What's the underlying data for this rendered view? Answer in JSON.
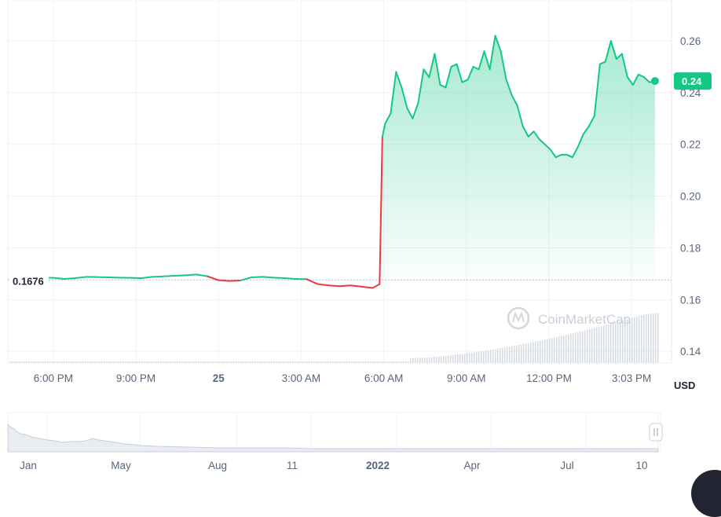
{
  "chart_data": {
    "type": "line",
    "unit_label": "USD",
    "reference_value_label": "0.1676",
    "reference_value": 0.1676,
    "current_price_label": "0.24",
    "current_price": 0.2445,
    "watermark": "CoinMarketCap",
    "y_ticks": [
      "0.26",
      "0.24",
      "0.22",
      "0.20",
      "0.18",
      "0.16",
      "0.14"
    ],
    "y_tick_values": [
      0.26,
      0.24,
      0.22,
      0.2,
      0.18,
      0.16,
      0.14
    ],
    "ylim": [
      0.1355,
      0.2758
    ],
    "x_ticks": [
      {
        "label": "6:00 PM",
        "bold": false
      },
      {
        "label": "9:00 PM",
        "bold": false
      },
      {
        "label": "25",
        "bold": true
      },
      {
        "label": "3:00 AM",
        "bold": false
      },
      {
        "label": "6:00 AM",
        "bold": false
      },
      {
        "label": "9:00 AM",
        "bold": false
      },
      {
        "label": "12:00 PM",
        "bold": false
      },
      {
        "label": "3:03 PM",
        "bold": false
      }
    ],
    "x_hours": [
      0,
      3,
      6,
      9,
      12,
      15,
      18,
      21
    ],
    "xlim_hours": [
      -1.65,
      22.45
    ],
    "series": [
      {
        "hours": [
          -1.2,
          -0.8,
          -0.4,
          0,
          0.4,
          0.8,
          1.2,
          1.6,
          2.0,
          2.4,
          2.8,
          3.2,
          3.6,
          4.0,
          4.4,
          4.8,
          5.2,
          5.6,
          6.0,
          6.4,
          6.8,
          7.2,
          7.6,
          8.0,
          8.4,
          8.8,
          9.2,
          9.6,
          10.0,
          10.4,
          10.8,
          11.2,
          11.6,
          11.85,
          11.95,
          12.05,
          12.25,
          12.45,
          12.65,
          12.85,
          13.05,
          13.25,
          13.45,
          13.65,
          13.85,
          14.05,
          14.25,
          14.45,
          14.65,
          14.85,
          15.05,
          15.25,
          15.45,
          15.65,
          15.85,
          16.05,
          16.25,
          16.45,
          16.65,
          16.85,
          17.05,
          17.25,
          17.45,
          17.65,
          17.85,
          18.05,
          18.25,
          18.45,
          18.65,
          18.85,
          19.05,
          19.25,
          19.45,
          19.65,
          19.85,
          20.05,
          20.25,
          20.45,
          20.65,
          20.85,
          21.05,
          21.25,
          21.45,
          21.65,
          21.85
        ],
        "values": [
          0.1685,
          0.1688,
          0.1685,
          0.1684,
          0.168,
          0.1683,
          0.1688,
          0.1687,
          0.1686,
          0.1685,
          0.1684,
          0.1683,
          0.1688,
          0.169,
          0.1692,
          0.1694,
          0.1697,
          0.169,
          0.1675,
          0.1672,
          0.1674,
          0.1686,
          0.1688,
          0.1685,
          0.1683,
          0.168,
          0.1679,
          0.166,
          0.1655,
          0.1652,
          0.1655,
          0.165,
          0.1645,
          0.166,
          0.223,
          0.228,
          0.232,
          0.248,
          0.242,
          0.234,
          0.23,
          0.236,
          0.249,
          0.246,
          0.255,
          0.243,
          0.242,
          0.25,
          0.251,
          0.244,
          0.245,
          0.25,
          0.249,
          0.256,
          0.249,
          0.262,
          0.256,
          0.245,
          0.239,
          0.235,
          0.227,
          0.223,
          0.225,
          0.222,
          0.22,
          0.218,
          0.215,
          0.216,
          0.216,
          0.215,
          0.219,
          0.224,
          0.227,
          0.231,
          0.251,
          0.252,
          0.26,
          0.253,
          0.255,
          0.246,
          0.243,
          0.247,
          0.246,
          0.244,
          0.2445
        ]
      }
    ],
    "navigator_ticks": [
      {
        "label": "Jan",
        "bold": false
      },
      {
        "label": "May",
        "bold": false
      },
      {
        "label": "Aug",
        "bold": false
      },
      {
        "label": "11",
        "bold": false
      },
      {
        "label": "2022",
        "bold": true
      },
      {
        "label": "Apr",
        "bold": false
      },
      {
        "label": "Jul",
        "bold": false
      },
      {
        "label": "10",
        "bold": false
      }
    ],
    "colors": {
      "up": "#16c784",
      "down": "#ea3943",
      "text": "#58667e",
      "grid": "#eff2f5"
    },
    "grid": true
  }
}
